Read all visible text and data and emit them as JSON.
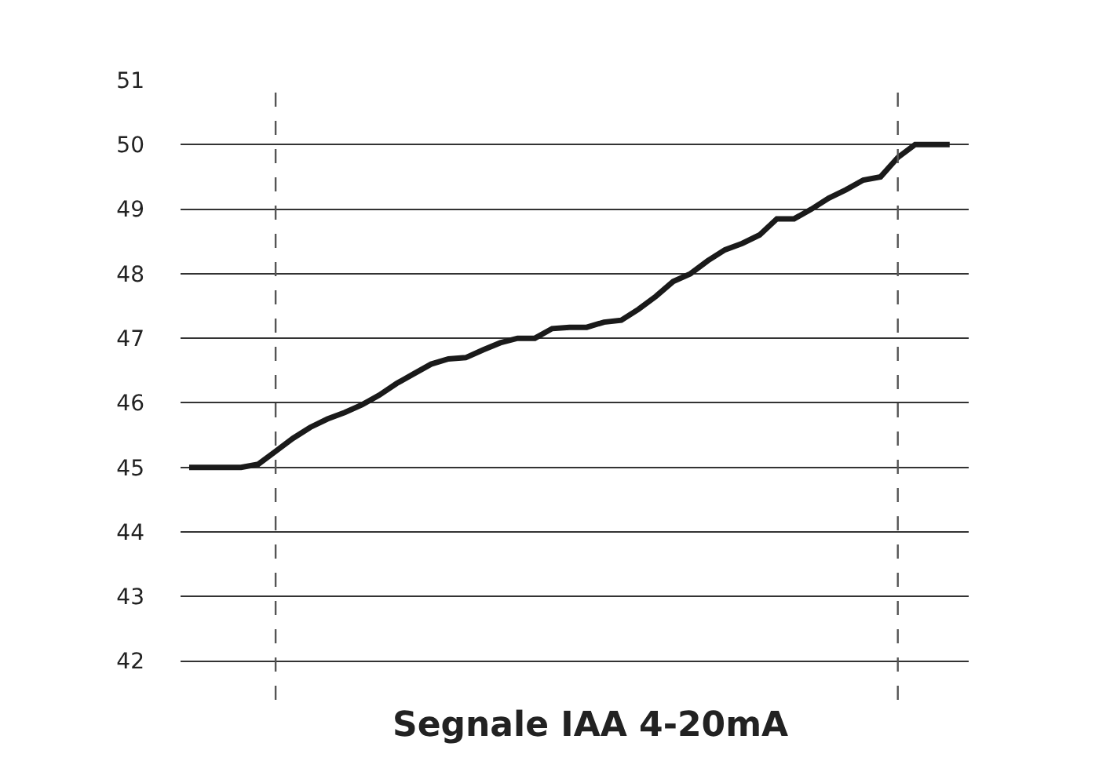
{
  "chart_data": {
    "type": "line",
    "xlabel": "Segnale IAA 4-20mA",
    "categories": [
      null,
      null,
      null,
      null,
      null,
      null,
      null,
      null,
      null,
      null,
      null,
      null,
      null,
      null,
      null,
      null,
      null,
      null,
      null,
      null,
      null,
      null,
      null,
      null,
      null,
      null,
      null,
      null,
      null,
      null,
      null,
      null,
      null,
      null,
      null,
      null,
      null,
      null,
      null,
      null,
      null,
      null,
      null,
      null,
      null
    ],
    "series": [
      {
        "color": "#1a1a1a",
        "values": [
          45.0,
          45.0,
          45.0,
          45.0,
          45.05,
          45.25,
          45.45,
          45.62,
          45.75,
          45.85,
          45.97,
          46.12,
          46.3,
          46.45,
          46.6,
          46.68,
          46.7,
          46.82,
          46.93,
          47.0,
          47.0,
          47.15,
          47.17,
          47.17,
          47.25,
          47.28,
          47.45,
          47.65,
          47.88,
          48.0,
          48.2,
          48.37,
          48.47,
          48.6,
          48.85,
          48.85,
          49.0,
          49.17,
          49.3,
          49.45,
          49.5,
          49.8,
          50.0,
          50.0,
          50.0
        ]
      }
    ],
    "ylim": [
      41.4,
      51
    ],
    "yticks": [
      42,
      43,
      44,
      45,
      46,
      47,
      48,
      49,
      50,
      51
    ],
    "tick_labels": "y",
    "grid": "y",
    "marker": "none",
    "line_style": "solid"
  }
}
